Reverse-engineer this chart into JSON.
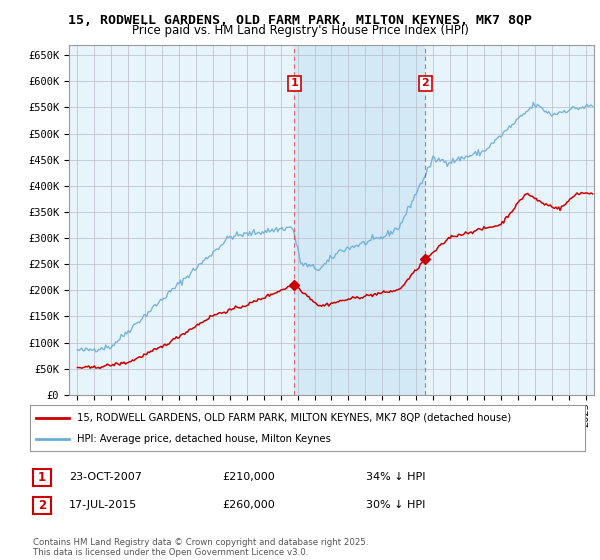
{
  "title_line1": "15, RODWELL GARDENS, OLD FARM PARK, MILTON KEYNES, MK7 8QP",
  "title_line2": "Price paid vs. HM Land Registry's House Price Index (HPI)",
  "ylabel_ticks": [
    "£0",
    "£50K",
    "£100K",
    "£150K",
    "£200K",
    "£250K",
    "£300K",
    "£350K",
    "£400K",
    "£450K",
    "£500K",
    "£550K",
    "£600K",
    "£650K"
  ],
  "ytick_values": [
    0,
    50000,
    100000,
    150000,
    200000,
    250000,
    300000,
    350000,
    400000,
    450000,
    500000,
    550000,
    600000,
    650000
  ],
  "hpi_color": "#6baed6",
  "price_color": "#cc0000",
  "background_color": "#ddeeff",
  "shade_color": "#d0e8f8",
  "grid_color": "#cccccc",
  "purchase1": {
    "date_x": 2007.81,
    "price": 210000,
    "label": "1",
    "date_str": "23-OCT-2007",
    "pct": "34% ↓ HPI"
  },
  "purchase2": {
    "date_x": 2015.54,
    "price": 260000,
    "label": "2",
    "date_str": "17-JUL-2015",
    "pct": "30% ↓ HPI"
  },
  "legend_line1": "15, RODWELL GARDENS, OLD FARM PARK, MILTON KEYNES, MK7 8QP (detached house)",
  "legend_line2": "HPI: Average price, detached house, Milton Keynes",
  "copyright": "Contains HM Land Registry data © Crown copyright and database right 2025.\nThis data is licensed under the Open Government Licence v3.0.",
  "xmin": 1994.5,
  "xmax": 2025.5,
  "ymin": 0,
  "ymax": 670000
}
